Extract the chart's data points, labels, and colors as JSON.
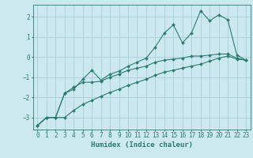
{
  "xlabel": "Humidex (Indice chaleur)",
  "bg_color": "#cce9f0",
  "grid_color": "#aacdd8",
  "line_color": "#2a7d6e",
  "xlim": [
    -0.5,
    23.5
  ],
  "ylim": [
    -3.6,
    2.6
  ],
  "yticks": [
    -3,
    -2,
    -1,
    0,
    1,
    2
  ],
  "xticks": [
    0,
    1,
    2,
    3,
    4,
    5,
    6,
    7,
    8,
    9,
    10,
    11,
    12,
    13,
    14,
    15,
    16,
    17,
    18,
    19,
    20,
    21,
    22,
    23
  ],
  "curve1_x": [
    0,
    1,
    2,
    3,
    4,
    5,
    6,
    7,
    8,
    9,
    10,
    11,
    12,
    13,
    14,
    15,
    16,
    17,
    18,
    19,
    20,
    21,
    22,
    23
  ],
  "curve1_y": [
    -3.4,
    -3.0,
    -3.0,
    -1.8,
    -1.6,
    -1.1,
    -0.65,
    -1.15,
    -0.85,
    -0.7,
    -0.45,
    -0.25,
    -0.05,
    0.5,
    1.2,
    1.6,
    0.7,
    1.2,
    2.3,
    1.8,
    2.1,
    1.85,
    0.1,
    -0.15
  ],
  "curve2_x": [
    0,
    1,
    2,
    3,
    4,
    5,
    6,
    7,
    8,
    9,
    10,
    11,
    12,
    13,
    14,
    15,
    16,
    17,
    18,
    19,
    20,
    21,
    22,
    23
  ],
  "curve2_y": [
    -3.4,
    -3.0,
    -3.0,
    -1.8,
    -1.5,
    -1.25,
    -1.25,
    -1.2,
    -1.0,
    -0.85,
    -0.65,
    -0.55,
    -0.45,
    -0.25,
    -0.15,
    -0.1,
    -0.05,
    0.05,
    0.05,
    0.1,
    0.15,
    0.15,
    -0.05,
    -0.15
  ],
  "curve3_x": [
    0,
    1,
    2,
    3,
    4,
    5,
    6,
    7,
    8,
    9,
    10,
    11,
    12,
    13,
    14,
    15,
    16,
    17,
    18,
    19,
    20,
    21,
    22,
    23
  ],
  "curve3_y": [
    -3.4,
    -3.0,
    -3.0,
    -3.0,
    -2.65,
    -2.35,
    -2.15,
    -1.95,
    -1.75,
    -1.6,
    -1.4,
    -1.25,
    -1.1,
    -0.9,
    -0.75,
    -0.65,
    -0.55,
    -0.45,
    -0.35,
    -0.2,
    -0.05,
    0.05,
    -0.1,
    -0.15
  ]
}
